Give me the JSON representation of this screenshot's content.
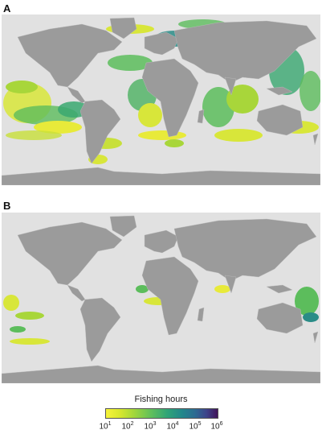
{
  "panels": [
    {
      "label": "A"
    },
    {
      "label": "B"
    }
  ],
  "legend": {
    "title": "Fishing hours",
    "ticks": [
      {
        "base": "10",
        "exp": "1"
      },
      {
        "base": "10",
        "exp": "2"
      },
      {
        "base": "10",
        "exp": "3"
      },
      {
        "base": "10",
        "exp": "4"
      },
      {
        "base": "10",
        "exp": "5"
      },
      {
        "base": "10",
        "exp": "6"
      }
    ]
  },
  "colors": {
    "ocean": "#e1e1e1",
    "land": "#9b9b9b",
    "low": "#f1ee3a",
    "mid": "#5cbd5c",
    "high": "#2a8c87",
    "max": "#3d4a8a"
  }
}
